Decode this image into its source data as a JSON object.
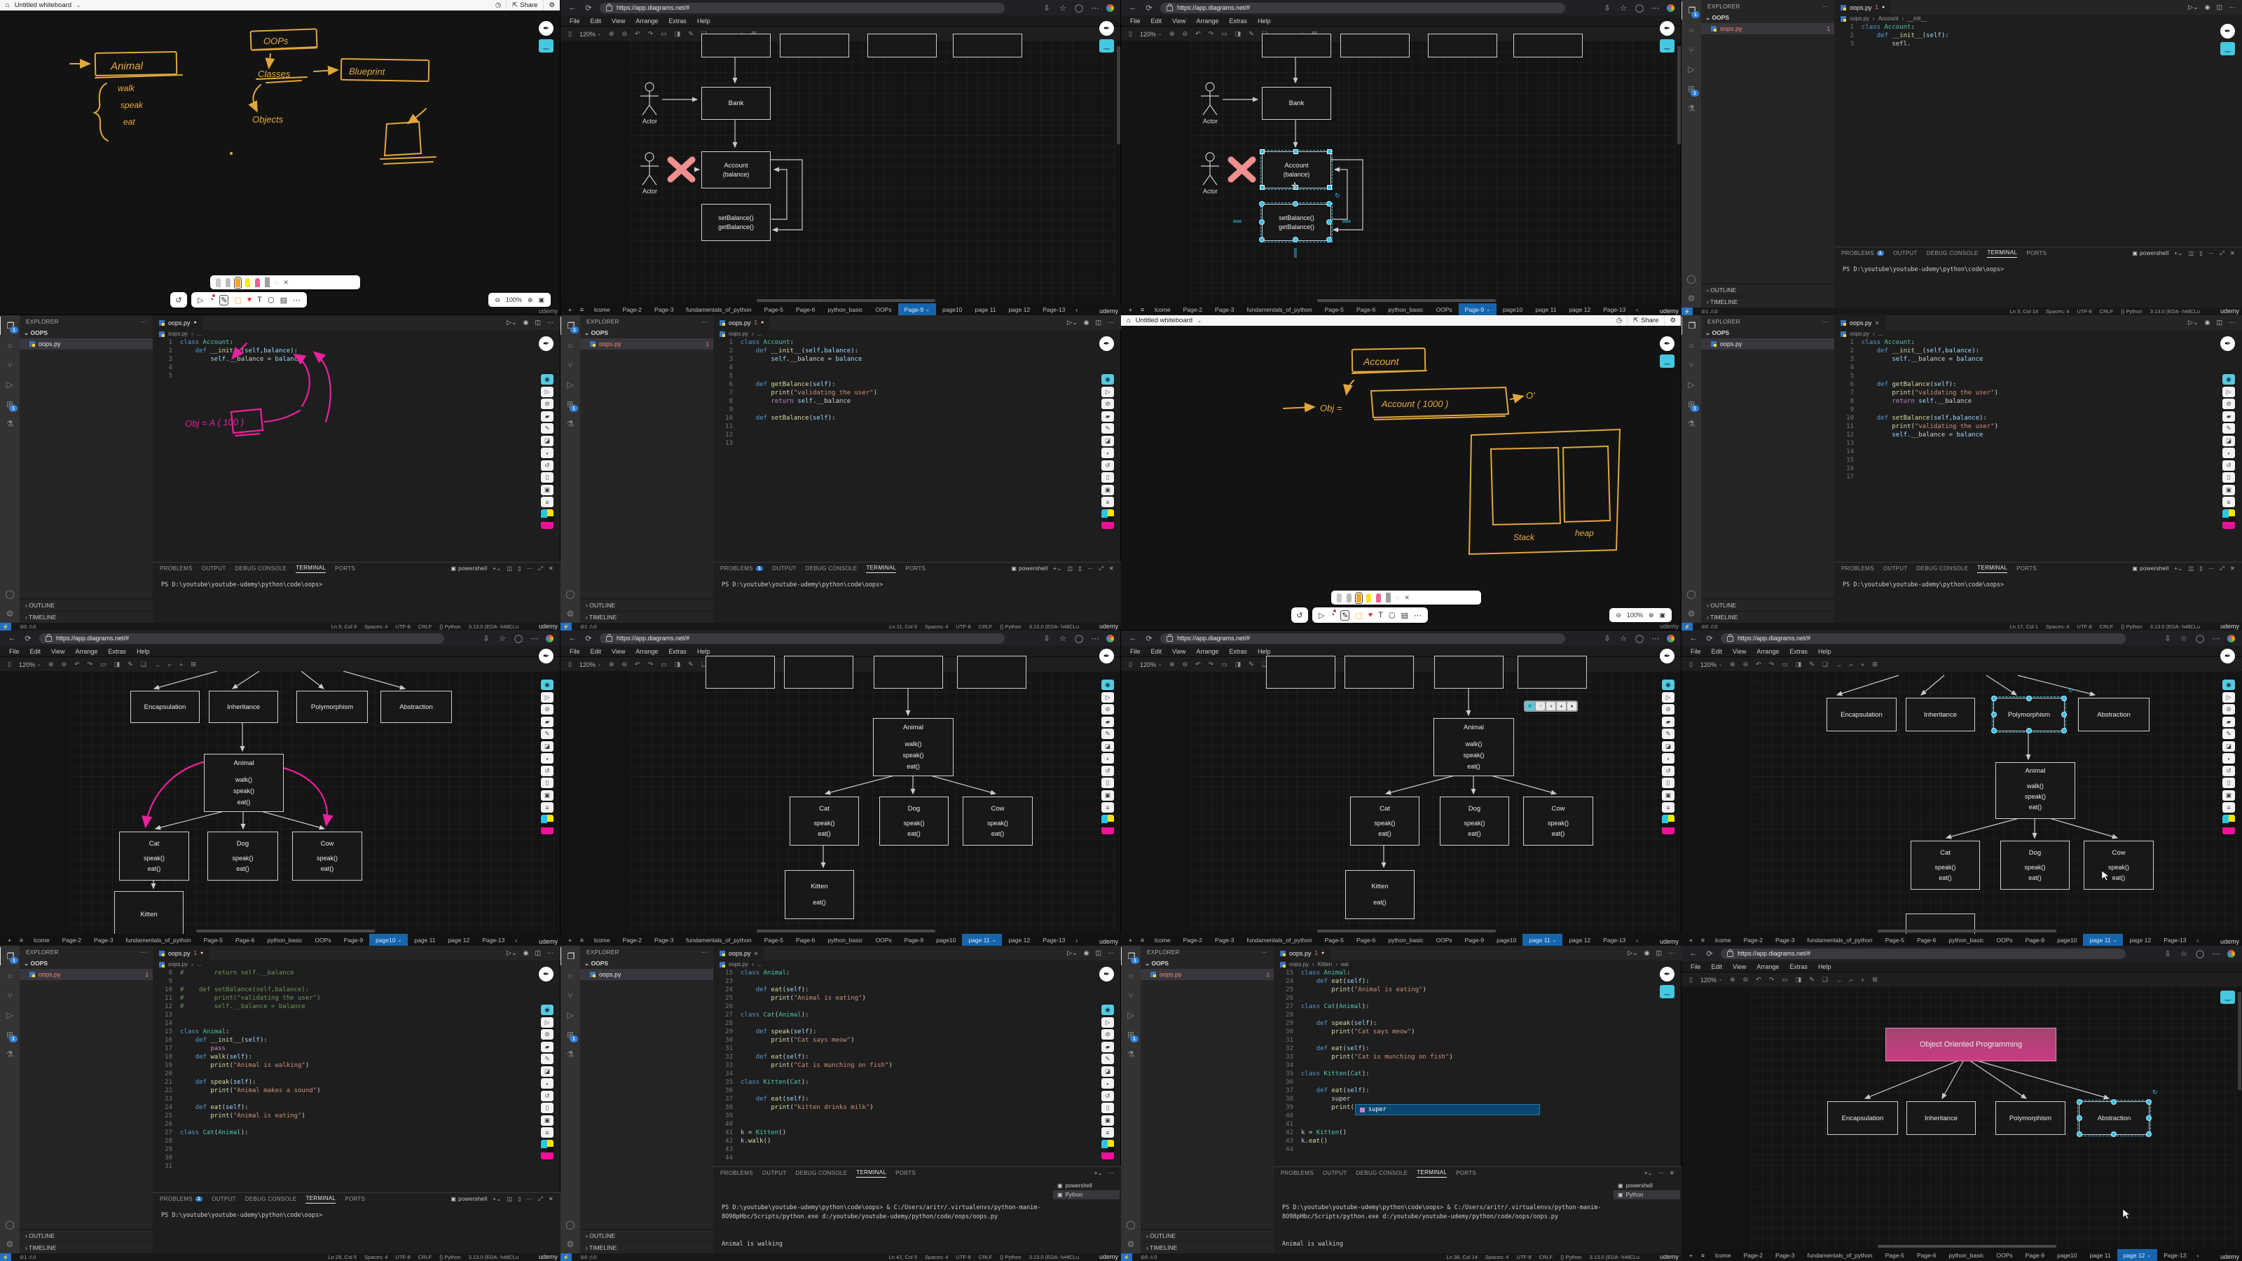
{
  "watermark": "udemy",
  "browser": {
    "url": "https://app.diagrams.net/#"
  },
  "drawio": {
    "menu": [
      "File",
      "Edit",
      "View",
      "Arrange",
      "Extras",
      "Help"
    ],
    "zoom": "120%",
    "tabs": [
      "lcome",
      "Page-2",
      "Page-3",
      "fundamentals_of_python",
      "Page-5",
      "Page-6",
      "python_basic",
      "OOPs",
      "Page-9",
      "page10",
      "page 11",
      "page 12",
      "Page-13"
    ]
  },
  "wb": {
    "title": "Untitled whiteboard",
    "share": "Share",
    "zoom": "100%",
    "w1": {
      "animal": "Animal",
      "walk": "walk",
      "speak": "speak",
      "eat": "eat",
      "oops": "OOPs",
      "classes": "Classes",
      "blueprint": "Blueprint",
      "objects": "Objects"
    },
    "w2": {
      "account": "Account",
      "obj1": "Obj =",
      "obj2": "Account ( 1000 )",
      "o": "O'",
      "stack": "Stack",
      "heap": "heap"
    }
  },
  "uml": {
    "bank": "Bank",
    "actor": "Actor",
    "account": "Account",
    "balance": "(balance)",
    "set": "setBalance()",
    "get": "getBalance()"
  },
  "oop": {
    "title": "Object Oriented Programming",
    "concepts": [
      "Encapsulation",
      "Inheritance",
      "Polymorphism",
      "Abstraction"
    ],
    "animal": "Animal",
    "am": [
      "walk()",
      "speak()",
      "eat()"
    ],
    "kids": [
      "Cat",
      "Dog",
      "Cow"
    ],
    "km": [
      "speak()",
      "eat()"
    ],
    "kitten": "Kitten",
    "kitm": "eat()"
  },
  "vs": {
    "explorer": "EXPLORER",
    "folder": "OOPS",
    "file": "oops.py",
    "outline": "OUTLINE",
    "timeline": "TIMELINE",
    "panels": {
      "problems": "PROBLEMS",
      "output": "OUTPUT",
      "debug": "DEBUG CONSOLE",
      "terminal": "TERMINAL",
      "ports": "PORTS"
    },
    "shell": "powershell",
    "python": "Python",
    "prompt": "PS D:\\youtube\\youtube-udemy\\python\\code\\oops>",
    "status": {
      "spaces": "Spaces: 4",
      "enc": "UTF-8",
      "eol": "CRLF",
      "lang": "{} Python",
      "ver": "3.13.0 (EDA- h4tlCLu"
    },
    "termRun": [
      "PS D:\\youtube\\youtube-udemy\\python\\code\\oops> & C:/Users/aritr/.virtualenvs/python-manim-8O98pHbc/Scripts/python.exe d:/youtube/youtube-udemy/python/code/oops/oops.py",
      "Animal is walking",
      "PS D:\\youtube\\youtube-udemy\\python\\code\\oops>"
    ]
  },
  "vs1": {
    "badge": "1",
    "pb": "1",
    "err": "1",
    "warn": "0",
    "ln": "Ln 3, Col 14",
    "crumbs": [
      "oops.py",
      "Account",
      "__init__"
    ],
    "lines": [
      {
        "n": "1",
        "t": "class Account:"
      },
      {
        "n": "2",
        "t": "    def __init__(self):"
      },
      {
        "n": "3",
        "t": "        sefl."
      }
    ]
  },
  "vs2": {
    "err": "0",
    "warn": "0",
    "ln": "Ln 5, Col 9",
    "crumbs": [
      "oops.py",
      "..."
    ],
    "note": "Obj = A ( 100 )",
    "lines": [
      {
        "n": "1",
        "t": "class Account:"
      },
      {
        "n": "2",
        "t": "    def __init__(self,balance):"
      },
      {
        "n": "3",
        "t": "        self.__balance = balance"
      },
      {
        "n": "4",
        "t": ""
      },
      {
        "n": "5",
        "t": ""
      }
    ]
  },
  "vs3": {
    "badge": "1",
    "pb": "1",
    "err": "1",
    "warn": "0",
    "ln": "Ln 11, Col 9",
    "crumbs": [
      "oops.py",
      "..."
    ],
    "lines": [
      {
        "n": "1",
        "t": "class Account:"
      },
      {
        "n": "2",
        "t": "    def __init__(self,balance):"
      },
      {
        "n": "3",
        "t": "        self.__balance = balance"
      },
      {
        "n": "4",
        "t": ""
      },
      {
        "n": "5",
        "t": ""
      },
      {
        "n": "6",
        "t": "    def getBalance(self):"
      },
      {
        "n": "7",
        "t": "        print(\"validating the user\")"
      },
      {
        "n": "8",
        "t": "        return self.__balance"
      },
      {
        "n": "9",
        "t": ""
      },
      {
        "n": "10",
        "t": "    def setBalance(self):"
      },
      {
        "n": "11",
        "t": ""
      },
      {
        "n": "12",
        "t": ""
      },
      {
        "n": "13",
        "t": ""
      }
    ]
  },
  "vs4": {
    "err": "0",
    "warn": "0",
    "ln": "Ln 17, Col 1",
    "crumbs": [
      "oops.py",
      "..."
    ],
    "lines": [
      {
        "n": "1",
        "t": "class Account:"
      },
      {
        "n": "2",
        "t": "    def __init__(self,balance):"
      },
      {
        "n": "3",
        "t": "        self.__balance = balance"
      },
      {
        "n": "4",
        "t": ""
      },
      {
        "n": "5",
        "t": ""
      },
      {
        "n": "6",
        "t": "    def getBalance(self):"
      },
      {
        "n": "7",
        "t": "        print(\"validating the user\")"
      },
      {
        "n": "8",
        "t": "        return self.__balance"
      },
      {
        "n": "9",
        "t": ""
      },
      {
        "n": "10",
        "t": "    def setBalance(self,balance):"
      },
      {
        "n": "11",
        "t": "        print(\"validating the user\")"
      },
      {
        "n": "12",
        "t": "        self.__balance = balance"
      },
      {
        "n": "13",
        "t": ""
      },
      {
        "n": "14",
        "t": ""
      },
      {
        "n": "15",
        "t": ""
      },
      {
        "n": "16",
        "t": ""
      },
      {
        "n": "17",
        "t": ""
      }
    ]
  },
  "vs5": {
    "badge": "1",
    "pb": "1",
    "err": "1",
    "warn": "0",
    "ln": "Ln 28, Col 5",
    "crumbs": [
      "oops.py",
      "..."
    ],
    "lines": [
      {
        "n": "8",
        "t": "#        return self.__balance"
      },
      {
        "n": "9",
        "t": ""
      },
      {
        "n": "10",
        "t": "#    def setBalance(self,balance):"
      },
      {
        "n": "11",
        "t": "#        print(\"validating the user\")"
      },
      {
        "n": "12",
        "t": "#        self.__balance = balance"
      },
      {
        "n": "13",
        "t": ""
      },
      {
        "n": "14",
        "t": ""
      },
      {
        "n": "15",
        "t": "class Animal:"
      },
      {
        "n": "16",
        "t": "    def __init__(self):"
      },
      {
        "n": "17",
        "t": "        pass"
      },
      {
        "n": "18",
        "t": "    def walk(self):"
      },
      {
        "n": "19",
        "t": "        print(\"Animal is walking\")"
      },
      {
        "n": "20",
        "t": ""
      },
      {
        "n": "21",
        "t": "    def speak(self):"
      },
      {
        "n": "22",
        "t": "        print(\"Animal makes a sound\")"
      },
      {
        "n": "23",
        "t": ""
      },
      {
        "n": "24",
        "t": "    def eat(self):"
      },
      {
        "n": "25",
        "t": "        print(\"Animal is eating\")"
      },
      {
        "n": "26",
        "t": ""
      },
      {
        "n": "27",
        "t": "class Cat(Animal):"
      },
      {
        "n": "28",
        "t": ""
      },
      {
        "n": "29",
        "t": ""
      },
      {
        "n": "30",
        "t": ""
      },
      {
        "n": "31",
        "t": ""
      }
    ]
  },
  "vs6": {
    "err": "0",
    "warn": "0",
    "ln": "Ln 42, Col 9",
    "crumbs": [
      "oops.py",
      "..."
    ],
    "lines": [
      {
        "n": "15",
        "t": "class Animal:"
      },
      {
        "n": "23",
        "t": ""
      },
      {
        "n": "24",
        "t": "    def eat(self):"
      },
      {
        "n": "25",
        "t": "        print(\"Animal is eating\")"
      },
      {
        "n": "26",
        "t": ""
      },
      {
        "n": "27",
        "t": "class Cat(Animal):"
      },
      {
        "n": "28",
        "t": ""
      },
      {
        "n": "29",
        "t": "    def speak(self):"
      },
      {
        "n": "30",
        "t": "        print(\"Cat says meow\")"
      },
      {
        "n": "31",
        "t": ""
      },
      {
        "n": "32",
        "t": "    def eat(self):"
      },
      {
        "n": "33",
        "t": "        print(\"Cat is munching on fish\")"
      },
      {
        "n": "34",
        "t": ""
      },
      {
        "n": "35",
        "t": "class Kitten(Cat):"
      },
      {
        "n": "36",
        "t": ""
      },
      {
        "n": "37",
        "t": "    def eat(self):"
      },
      {
        "n": "38",
        "t": "        print(\"kitten drinks milk\")"
      },
      {
        "n": "39",
        "t": ""
      },
      {
        "n": "40",
        "t": ""
      },
      {
        "n": "41",
        "t": "k = Kitten()"
      },
      {
        "n": "42",
        "t": "k.walk()"
      },
      {
        "n": "43",
        "t": ""
      },
      {
        "n": "44",
        "t": ""
      }
    ]
  },
  "vs7": {
    "badge": "1",
    "err": "0",
    "warn": "0",
    "ln": "Ln 38, Col 14",
    "crumbs": [
      "oops.py",
      "Kitten",
      "eat"
    ],
    "suggestion": "super",
    "lines": [
      {
        "n": "15",
        "t": "class Animal:"
      },
      {
        "n": "24",
        "t": "    def eat(self):"
      },
      {
        "n": "25",
        "t": "        print(\"Animal is eating\")"
      },
      {
        "n": "26",
        "t": ""
      },
      {
        "n": "27",
        "t": "class Cat(Animal):"
      },
      {
        "n": "28",
        "t": ""
      },
      {
        "n": "29",
        "t": "    def speak(self):"
      },
      {
        "n": "30",
        "t": "        print(\"Cat says meow\")"
      },
      {
        "n": "31",
        "t": ""
      },
      {
        "n": "32",
        "t": "    def eat(self):"
      },
      {
        "n": "33",
        "t": "        print(\"Cat is munching on fish\")"
      },
      {
        "n": "34",
        "t": ""
      },
      {
        "n": "35",
        "t": "class Kitten(Cat):"
      },
      {
        "n": "36",
        "t": ""
      },
      {
        "n": "37",
        "t": "    def eat(self):"
      },
      {
        "n": "38",
        "t": "        super"
      },
      {
        "n": "39",
        "t": "        print("
      },
      {
        "n": "40",
        "t": ""
      },
      {
        "n": "41",
        "t": ""
      },
      {
        "n": "42",
        "t": "k = Kitten()"
      },
      {
        "n": "43",
        "t": "k.eat()"
      },
      {
        "n": "44",
        "t": ""
      }
    ]
  }
}
